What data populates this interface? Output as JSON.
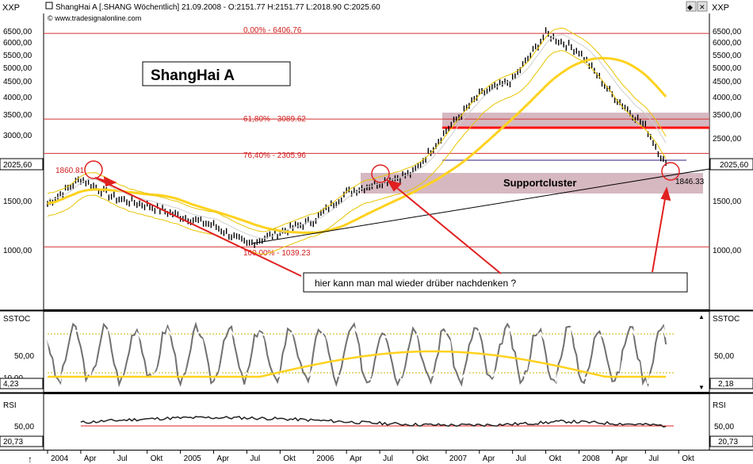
{
  "window": {
    "corner_left": "XXP",
    "corner_right": "XXP",
    "header": "ShangHai A [.SHANG  Wöchentlich] 21.09.2008 - O:2151.77 H:2151.77 L:2018.90 C:2025.60",
    "watermark": "© www.tradesignalonline.com",
    "window_buttons": [
      "◆",
      "✕"
    ]
  },
  "annotations": {
    "title_box": "ShangHai A",
    "supportcluster": "Supportcluster",
    "comment": "hier kann man mal wieder drüber nachdenken ?",
    "high_label": "1860.81",
    "low_label": "1846.33",
    "last_price_left": "2025,60",
    "last_price_right": "2025,60"
  },
  "fib_levels": [
    {
      "label": "0,00% - 6406.76",
      "value": 6406.76
    },
    {
      "label": "61,80% - 3089.62",
      "value": 3089.62
    },
    {
      "label": "76,40% - 2305.96",
      "value": 2305.96
    },
    {
      "label": "100,00% - 1039.23",
      "value": 1039.23
    }
  ],
  "panels": {
    "price": {
      "ticks": [
        "6500,00",
        "6000,00",
        "5500,00",
        "5000,00",
        "4500,00",
        "4000,00",
        "3500,00",
        "3000,00",
        "2500,00",
        "1500,00",
        "1000,00"
      ]
    },
    "sstoc": {
      "name": "SSTOC",
      "tick": "50,00",
      "top_marker": "▲",
      "bottom_marker": "▼",
      "left_values": [
        "10,00",
        "4,23"
      ],
      "right_value": "2,18"
    },
    "rsi": {
      "name": "RSI",
      "tick": "50,00",
      "left_value": "20,73",
      "right_value": "20,73"
    }
  },
  "xaxis": {
    "labels": [
      "2004",
      "Apr",
      "Jul",
      "Okt",
      "2005",
      "Apr",
      "Jul",
      "Okt",
      "2006",
      "Apr",
      "Jul",
      "Okt",
      "2007",
      "Apr",
      "Jul",
      "Okt",
      "2008",
      "Apr",
      "Jul",
      "Okt"
    ],
    "cursor_marker": "↑"
  },
  "chart_data": {
    "type": "line",
    "x_range": [
      "2004-01",
      "2008-10"
    ],
    "price_series": {
      "name": "ShangHai A",
      "x": [
        "2004-01",
        "2004-04",
        "2004-07",
        "2004-10",
        "2005-01",
        "2005-04",
        "2005-07",
        "2005-10",
        "2006-01",
        "2006-04",
        "2006-07",
        "2006-10",
        "2007-01",
        "2007-04",
        "2007-07",
        "2007-10",
        "2008-01",
        "2008-04",
        "2008-07",
        "2008-09"
      ],
      "y": [
        1500,
        1860,
        1580,
        1480,
        1350,
        1250,
        1060,
        1180,
        1300,
        1650,
        1800,
        1950,
        2800,
        3800,
        4300,
        6400,
        5500,
        3800,
        2900,
        2025
      ]
    },
    "sstoc_overbought": 80,
    "sstoc_oversold": 20,
    "rsi_line": 50,
    "colors": {
      "background": "#ffffff",
      "frame": "#c40000",
      "fib": "#d33030",
      "support_zone": "#c8a0ac",
      "bull_band": "#e8c400",
      "ma": "#ffd21e",
      "resistance": "#ff1010",
      "purple_line": "#9a8cc0",
      "arrow": "#e02020"
    }
  }
}
